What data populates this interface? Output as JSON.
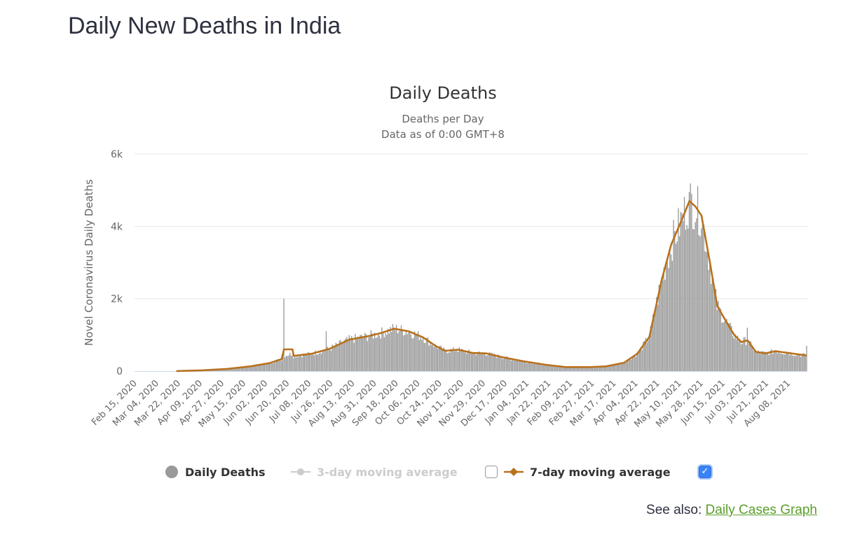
{
  "page": {
    "title": "Daily New Deaths in India",
    "see_also_label": "See also:",
    "see_also_link": "Daily Cases Graph"
  },
  "colors": {
    "bar": "#999999",
    "ma7": "#b8711d",
    "ma3": "#cccccc",
    "grid": "#e6e6e6",
    "axis": "#ccd6eb",
    "link": "#5a9e2a",
    "checkbox_on": "#3a82f6"
  },
  "legend": {
    "items": [
      {
        "label": "Daily Deaths",
        "icon": "circle-marker-icon",
        "visible": true
      },
      {
        "label": "3-day moving average",
        "icon": "line-marker-icon",
        "visible": false,
        "checked": false
      },
      {
        "label": "7-day moving average",
        "icon": "line-marker-icon",
        "visible": true,
        "checked": true
      }
    ]
  },
  "chart_data": {
    "type": "bar",
    "title": "Daily Deaths",
    "subtitle": [
      "Deaths per Day",
      "Data as of 0:00 GMT+8"
    ],
    "xlabel": "",
    "ylabel": "Novel Coronavirus Daily Deaths",
    "ylim": [
      0,
      6000
    ],
    "yticks": [
      0,
      2000,
      4000,
      6000
    ],
    "ytick_labels": [
      "0",
      "2k",
      "4k",
      "6k"
    ],
    "grid": true,
    "legend_position": "bottom",
    "x_start": "2020-02-15",
    "x_end": "2021-08-23",
    "xtick_labels": [
      "Feb 15, 2020",
      "Mar 04, 2020",
      "Mar 22, 2020",
      "Apr 09, 2020",
      "Apr 27, 2020",
      "May 15, 2020",
      "Jun 02, 2020",
      "Jun 20, 2020",
      "Jul 08, 2020",
      "Jul 26, 2020",
      "Aug 13, 2020",
      "Aug 31, 2020",
      "Sep 18, 2020",
      "Oct 06, 2020",
      "Oct 24, 2020",
      "Nov 11, 2020",
      "Nov 29, 2020",
      "Dec 17, 2020",
      "Jan 04, 2021",
      "Jan 22, 2021",
      "Feb 09, 2021",
      "Feb 27, 2021",
      "Mar 17, 2021",
      "Apr 04, 2021",
      "Apr 22, 2021",
      "May 10, 2021",
      "May 28, 2021",
      "Jun 15, 2021",
      "Jul 03, 2021",
      "Jul 21, 2021",
      "Aug 08, 2021"
    ],
    "series": [
      {
        "name": "7-day moving average",
        "kind": "line",
        "points": [
          [
            "2020-02-15",
            0
          ],
          [
            "2020-03-20",
            0
          ],
          [
            "2020-04-10",
            20
          ],
          [
            "2020-05-01",
            60
          ],
          [
            "2020-05-20",
            130
          ],
          [
            "2020-06-05",
            220
          ],
          [
            "2020-06-15",
            330
          ],
          [
            "2020-06-17",
            600
          ],
          [
            "2020-06-24",
            600
          ],
          [
            "2020-06-25",
            420
          ],
          [
            "2020-07-10",
            480
          ],
          [
            "2020-07-25",
            620
          ],
          [
            "2020-08-10",
            870
          ],
          [
            "2020-08-25",
            960
          ],
          [
            "2020-09-05",
            1050
          ],
          [
            "2020-09-16",
            1170
          ],
          [
            "2020-09-28",
            1100
          ],
          [
            "2020-10-10",
            930
          ],
          [
            "2020-10-20",
            700
          ],
          [
            "2020-10-28",
            560
          ],
          [
            "2020-11-08",
            590
          ],
          [
            "2020-11-20",
            500
          ],
          [
            "2020-12-01",
            490
          ],
          [
            "2020-12-15",
            380
          ],
          [
            "2021-01-01",
            270
          ],
          [
            "2021-01-20",
            170
          ],
          [
            "2021-02-05",
            110
          ],
          [
            "2021-02-25",
            110
          ],
          [
            "2021-03-10",
            130
          ],
          [
            "2021-03-25",
            230
          ],
          [
            "2021-04-05",
            480
          ],
          [
            "2021-04-15",
            950
          ],
          [
            "2021-04-25",
            2500
          ],
          [
            "2021-05-03",
            3500
          ],
          [
            "2021-05-12",
            4200
          ],
          [
            "2021-05-18",
            4700
          ],
          [
            "2021-05-23",
            4550
          ],
          [
            "2021-05-28",
            4300
          ],
          [
            "2021-06-04",
            3000
          ],
          [
            "2021-06-10",
            1800
          ],
          [
            "2021-06-16",
            1450
          ],
          [
            "2021-06-24",
            1000
          ],
          [
            "2021-06-30",
            800
          ],
          [
            "2021-07-05",
            850
          ],
          [
            "2021-07-12",
            530
          ],
          [
            "2021-07-20",
            490
          ],
          [
            "2021-07-28",
            550
          ],
          [
            "2021-08-08",
            500
          ],
          [
            "2021-08-23",
            430
          ]
        ]
      },
      {
        "name": "Daily Deaths",
        "kind": "bar",
        "note": "daily values follow the 7-day average with day-to-day noise",
        "spikes": [
          [
            "2020-06-17",
            2000
          ],
          [
            "2020-07-22",
            1100
          ],
          [
            "2021-05-18",
            4950
          ],
          [
            "2021-05-20",
            4900
          ],
          [
            "2021-07-05",
            1200
          ],
          [
            "2021-08-23",
            700
          ]
        ]
      },
      {
        "name": "3-day moving average",
        "kind": "line",
        "visible": false
      }
    ]
  }
}
